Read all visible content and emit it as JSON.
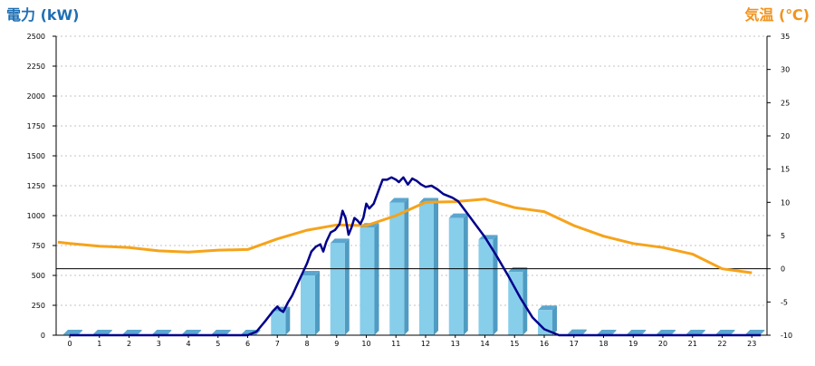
{
  "chart_data": {
    "type": "bar+line",
    "left_axis_label": "電力 (kW)",
    "right_axis_label": "気温 (℃)",
    "colors": {
      "left_label": "#1f6fb3",
      "right_label": "#f2931c",
      "bar_front": "#87ceeb",
      "bar_side": "#4f9bc2",
      "bar_top": "#5aa6cf",
      "power_line": "#00008b",
      "temp_line": "#f6a31a",
      "grid": "#b0b0b0",
      "zero_line": "#000000"
    },
    "categories": [
      "0",
      "1",
      "2",
      "3",
      "4",
      "5",
      "6",
      "7",
      "8",
      "9",
      "10",
      "11",
      "12",
      "13",
      "14",
      "15",
      "16",
      "17",
      "18",
      "19",
      "20",
      "21",
      "22",
      "23"
    ],
    "left_axis": {
      "min": 0,
      "max": 2500,
      "ticks": [
        "0",
        "250",
        "500",
        "750",
        "1000",
        "1250",
        "1500",
        "1750",
        "2000",
        "2250",
        "2500"
      ]
    },
    "right_axis": {
      "min": -10,
      "max": 35,
      "ticks": [
        "-10",
        "-5",
        "0",
        "5",
        "10",
        "15",
        "20",
        "25",
        "30",
        "35"
      ]
    },
    "grid": true,
    "series": [
      {
        "type": "bar",
        "axis": "left",
        "values": [
          0,
          0,
          0,
          0,
          0,
          0,
          0,
          200,
          500,
          770,
          900,
          1110,
          1110,
          980,
          800,
          530,
          210,
          10,
          0,
          0,
          0,
          0,
          0,
          0
        ]
      },
      {
        "type": "line",
        "axis": "left",
        "points": [
          [
            0,
            0
          ],
          [
            6,
            0
          ],
          [
            6.3,
            30
          ],
          [
            6.6,
            120
          ],
          [
            6.85,
            200
          ],
          [
            7,
            240
          ],
          [
            7.1,
            210
          ],
          [
            7.2,
            195
          ],
          [
            7.35,
            270
          ],
          [
            7.5,
            330
          ],
          [
            7.7,
            440
          ],
          [
            7.85,
            520
          ],
          [
            8,
            600
          ],
          [
            8.15,
            700
          ],
          [
            8.3,
            740
          ],
          [
            8.45,
            760
          ],
          [
            8.55,
            700
          ],
          [
            8.65,
            780
          ],
          [
            8.8,
            860
          ],
          [
            8.95,
            880
          ],
          [
            9.1,
            930
          ],
          [
            9.2,
            1040
          ],
          [
            9.3,
            980
          ],
          [
            9.4,
            840
          ],
          [
            9.5,
            900
          ],
          [
            9.6,
            980
          ],
          [
            9.7,
            960
          ],
          [
            9.8,
            930
          ],
          [
            9.9,
            980
          ],
          [
            10,
            1100
          ],
          [
            10.1,
            1060
          ],
          [
            10.25,
            1100
          ],
          [
            10.4,
            1200
          ],
          [
            10.55,
            1300
          ],
          [
            10.7,
            1300
          ],
          [
            10.85,
            1320
          ],
          [
            11,
            1300
          ],
          [
            11.1,
            1280
          ],
          [
            11.25,
            1320
          ],
          [
            11.4,
            1260
          ],
          [
            11.55,
            1310
          ],
          [
            11.7,
            1290
          ],
          [
            11.85,
            1260
          ],
          [
            12,
            1240
          ],
          [
            12.2,
            1250
          ],
          [
            12.4,
            1220
          ],
          [
            12.6,
            1180
          ],
          [
            12.9,
            1150
          ],
          [
            13.1,
            1120
          ],
          [
            13.4,
            1020
          ],
          [
            13.7,
            920
          ],
          [
            14,
            820
          ],
          [
            14.4,
            660
          ],
          [
            14.8,
            490
          ],
          [
            15.2,
            310
          ],
          [
            15.6,
            150
          ],
          [
            16,
            50
          ],
          [
            16.5,
            0
          ],
          [
            17,
            0
          ],
          [
            23.3,
            0
          ]
        ]
      },
      {
        "type": "line",
        "axis": "right",
        "points": [
          [
            -0.4,
            4
          ],
          [
            0,
            3.8
          ],
          [
            1,
            3.4
          ],
          [
            2,
            3.2
          ],
          [
            3,
            2.7
          ],
          [
            4,
            2.5
          ],
          [
            5,
            2.8
          ],
          [
            6,
            2.9
          ],
          [
            7,
            4.5
          ],
          [
            8,
            5.8
          ],
          [
            9,
            6.6
          ],
          [
            10,
            6.5
          ],
          [
            11,
            8.0
          ],
          [
            12,
            10.0
          ],
          [
            13,
            10.1
          ],
          [
            14,
            10.5
          ],
          [
            15,
            9.2
          ],
          [
            16,
            8.6
          ],
          [
            17,
            6.5
          ],
          [
            18,
            4.9
          ],
          [
            19,
            3.8
          ],
          [
            20,
            3.2
          ],
          [
            21,
            2.2
          ],
          [
            22,
            0
          ],
          [
            23,
            -0.6
          ]
        ]
      }
    ]
  }
}
